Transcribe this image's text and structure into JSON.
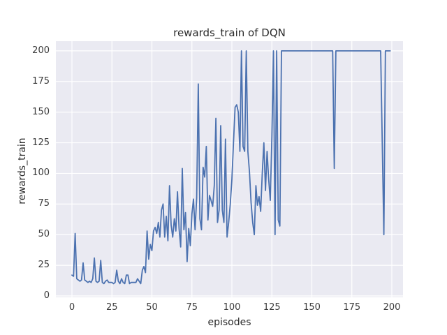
{
  "figure": {
    "background": "#ffffff"
  },
  "chart_data": {
    "type": "line",
    "title": "rewards_train of DQN",
    "xlabel": "episodes",
    "ylabel": "rewards_train",
    "legend": "none",
    "grid": true,
    "plot_background": "#eaeaf2",
    "grid_color": "#ffffff",
    "line_color": "#4c72b0",
    "text_color": "#2b2b2b",
    "tick_color": "#3b3b3b",
    "x_start": 0,
    "x_step": 1,
    "xticks": [
      0,
      25,
      50,
      75,
      100,
      125,
      150,
      175,
      200
    ],
    "yticks": [
      0,
      25,
      50,
      75,
      100,
      125,
      150,
      175,
      200
    ],
    "xlim": [
      -10,
      207
    ],
    "ylim": [
      -1,
      208
    ],
    "values": [
      17,
      16,
      51,
      14,
      13,
      12,
      13,
      27,
      13,
      12,
      11,
      12,
      11,
      14,
      31,
      12,
      11,
      12,
      29,
      11,
      10,
      12,
      13,
      11,
      11,
      11,
      10,
      11,
      21,
      12,
      10,
      14,
      11,
      10,
      17,
      17,
      10,
      11,
      11,
      11,
      11,
      14,
      12,
      10,
      21,
      24,
      19,
      53,
      30,
      42,
      37,
      53,
      56,
      51,
      60,
      48,
      70,
      75,
      48,
      65,
      45,
      90,
      58,
      48,
      63,
      53,
      85,
      55,
      40,
      104,
      54,
      68,
      28,
      55,
      41,
      67,
      79,
      54,
      80,
      173,
      63,
      54,
      105,
      97,
      122,
      62,
      82,
      78,
      73,
      90,
      145,
      60,
      70,
      139,
      70,
      60,
      128,
      48,
      60,
      75,
      95,
      125,
      154,
      156,
      150,
      118,
      200,
      122,
      118,
      200,
      118,
      101,
      76,
      60,
      50,
      90,
      74,
      81,
      69,
      100,
      125,
      86,
      118,
      95,
      78,
      130,
      200,
      50,
      200,
      62,
      57,
      200,
      200,
      200,
      200,
      200,
      200,
      200,
      200,
      200,
      200,
      200,
      200,
      200,
      200,
      200,
      200,
      200,
      200,
      200,
      200,
      200,
      200,
      200,
      200,
      200,
      200,
      200,
      200,
      200,
      200,
      200,
      200,
      200,
      104,
      200,
      200,
      200,
      200,
      200,
      200,
      200,
      200,
      200,
      200,
      200,
      200,
      200,
      200,
      200,
      200,
      200,
      200,
      200,
      200,
      200,
      200,
      200,
      200,
      200,
      200,
      200,
      200,
      200,
      125,
      50,
      200,
      200,
      200,
      200
    ]
  }
}
